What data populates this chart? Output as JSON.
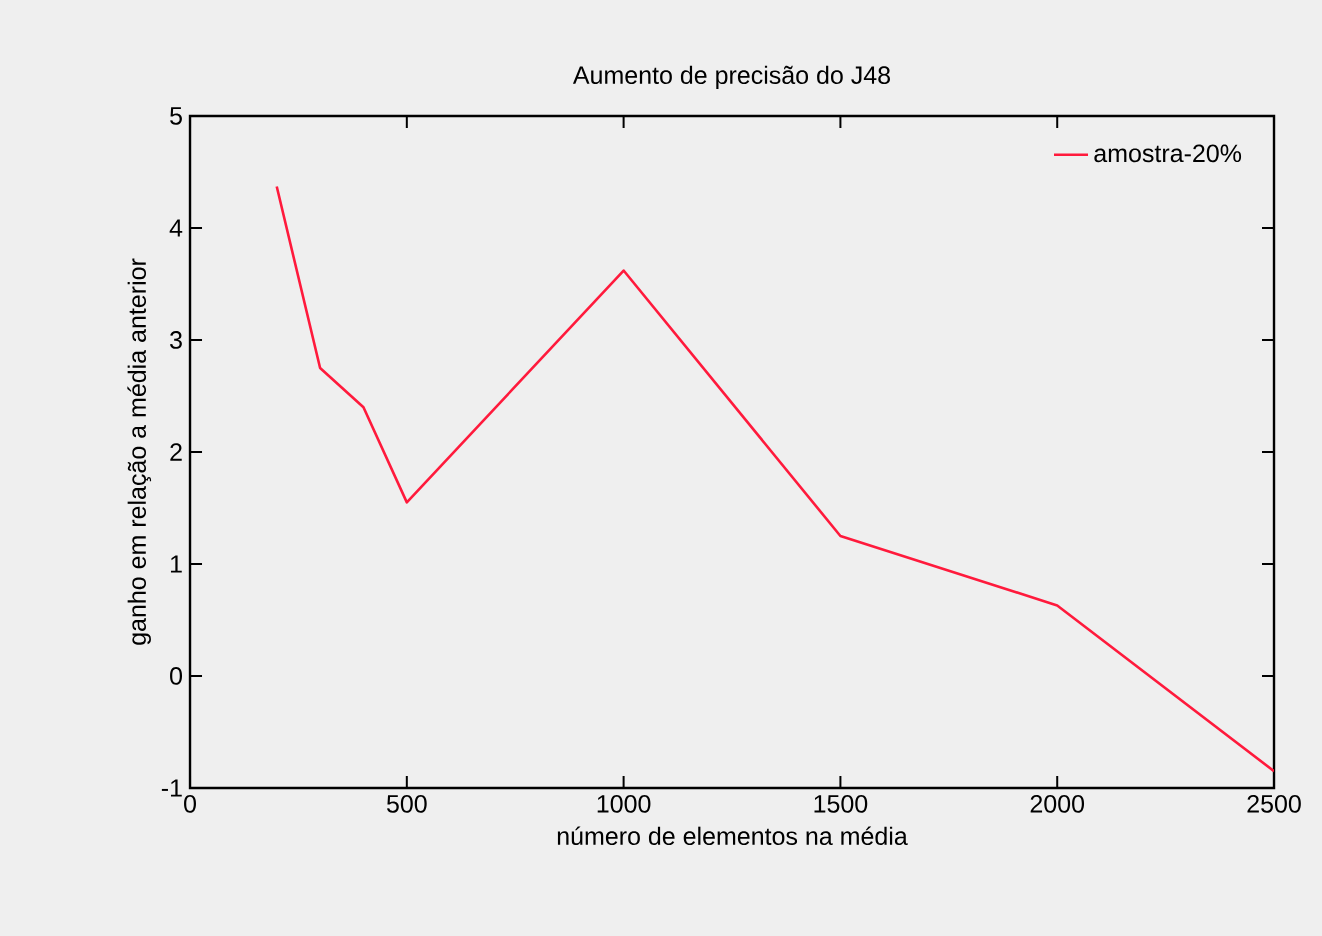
{
  "chart_data": {
    "type": "line",
    "title": "Aumento de precisão do J48",
    "xlabel": "número de elementos na média",
    "ylabel": "ganho em relação a média anterior",
    "x": [
      200,
      300,
      400,
      500,
      1000,
      1500,
      2000,
      2500
    ],
    "series": [
      {
        "name": "amostra-20%",
        "color": "#ff1a3c",
        "values": [
          4.37,
          2.75,
          2.4,
          1.55,
          3.62,
          1.25,
          0.63,
          -0.85
        ]
      }
    ],
    "xlim": [
      0,
      2500
    ],
    "ylim": [
      -1,
      5
    ],
    "xticks": [
      0,
      500,
      1000,
      1500,
      2000,
      2500
    ],
    "yticks": [
      -1,
      0,
      1,
      2,
      3,
      4,
      5
    ],
    "grid": false,
    "legend": "top right",
    "marker": "none",
    "line_style": "solid"
  }
}
